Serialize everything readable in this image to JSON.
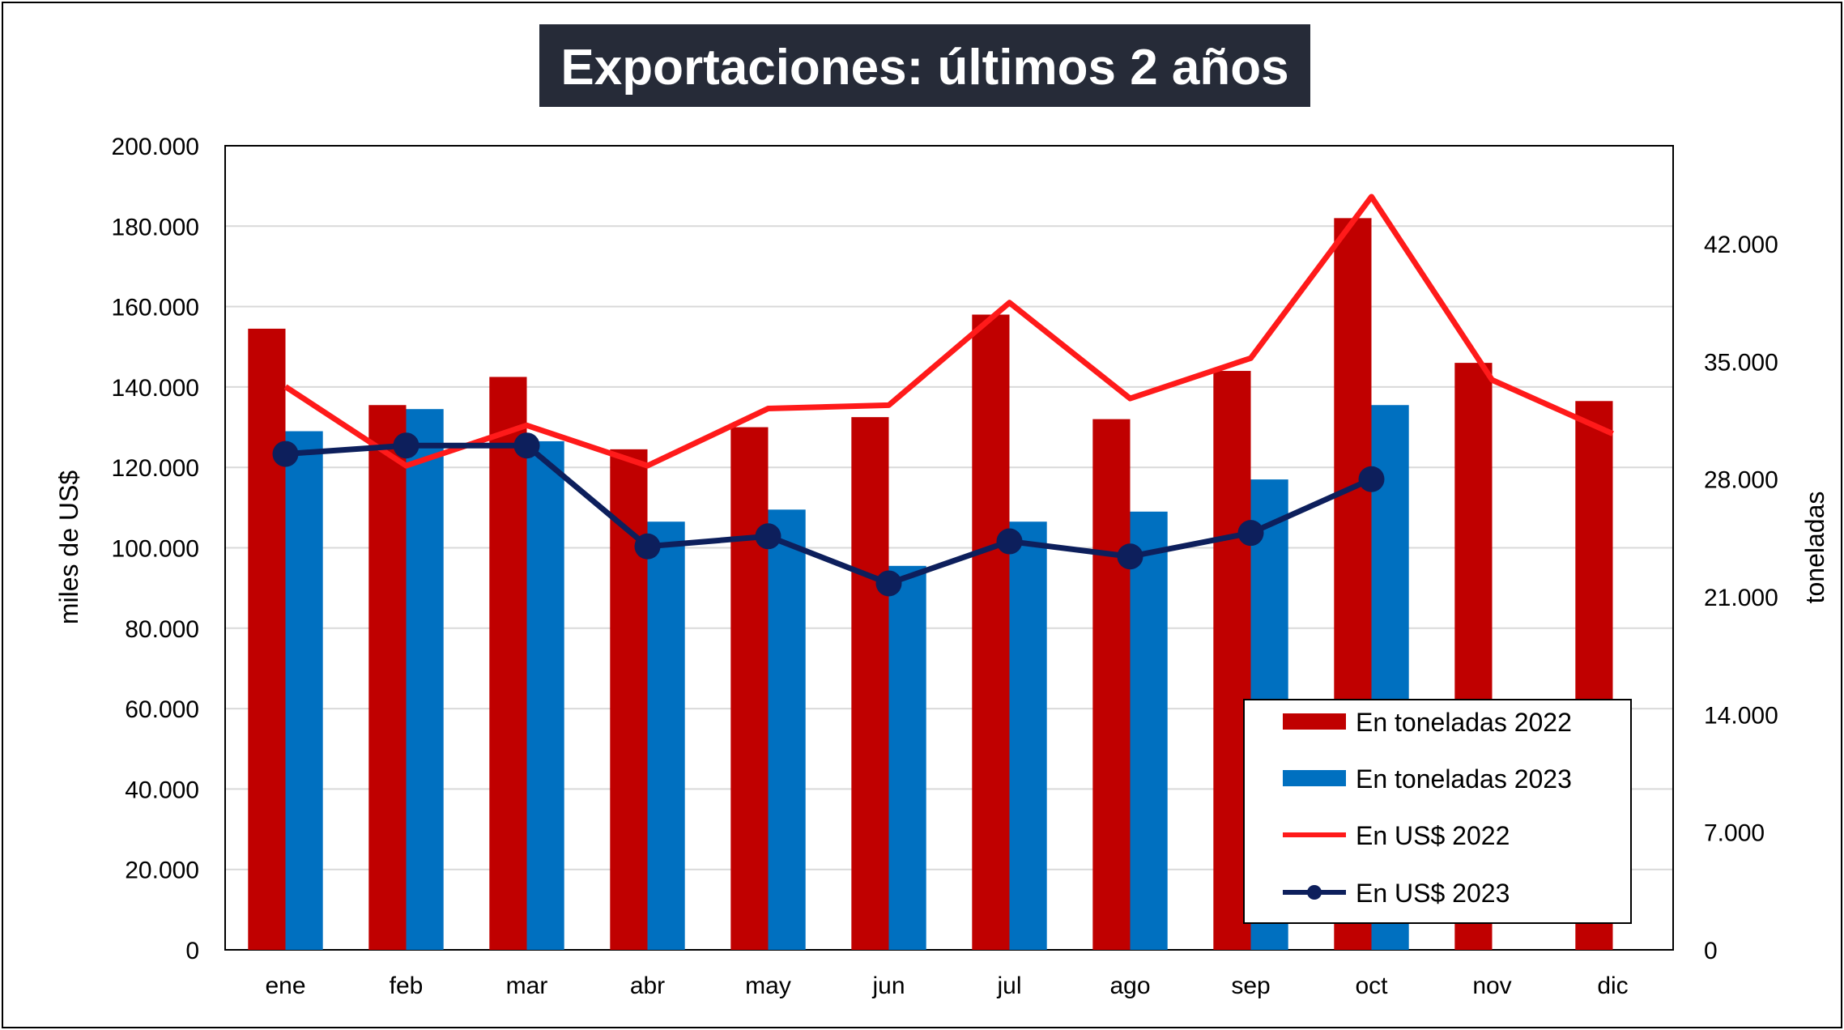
{
  "chart_data": {
    "type": "bar",
    "title": "Exportaciones: últimos 2 años",
    "categories": [
      "ene",
      "feb",
      "mar",
      "abr",
      "may",
      "jun",
      "jul",
      "ago",
      "sep",
      "oct",
      "nov",
      "dic"
    ],
    "y_left": {
      "label": "miles de US$",
      "min": 0,
      "max": 200000,
      "step": 20000,
      "tick_labels": [
        "0",
        "20.000",
        "40.000",
        "60.000",
        "80.000",
        "100.000",
        "120.000",
        "140.000",
        "160.000",
        "180.000",
        "200.000"
      ]
    },
    "y_right": {
      "label": "toneladas",
      "min": 0,
      "max": 42000,
      "step": 7000,
      "range_max": 47833,
      "tick_labels": [
        "0",
        "7.000",
        "14.000",
        "21.000",
        "28.000",
        "35.000",
        "42.000"
      ]
    },
    "series": [
      {
        "name": "En toneladas 2022",
        "kind": "bar",
        "axis": "left",
        "color": "#c00000",
        "values": [
          154500,
          135500,
          142500,
          124500,
          130000,
          132500,
          158000,
          132000,
          144000,
          182000,
          146000,
          136500
        ]
      },
      {
        "name": "En toneladas 2023",
        "kind": "bar",
        "axis": "left",
        "color": "#0070c0",
        "values": [
          129000,
          134500,
          126500,
          106500,
          109500,
          95500,
          106500,
          109000,
          117000,
          135500,
          null,
          null
        ]
      },
      {
        "name": "En US$ 2022",
        "kind": "line",
        "axis": "right",
        "color": "#ff1a1a",
        "values": [
          33500,
          28800,
          31200,
          28800,
          32200,
          32400,
          38500,
          32800,
          35200,
          44800,
          33900,
          30700
        ]
      },
      {
        "name": "En US$ 2023",
        "kind": "line",
        "axis": "right",
        "color": "#0d1f5c",
        "markers": true,
        "values": [
          29500,
          30000,
          30000,
          24000,
          24600,
          21800,
          24300,
          23400,
          24800,
          28000,
          null,
          null
        ]
      }
    ],
    "legend": {
      "position": "bottom-right"
    },
    "grid": true
  }
}
